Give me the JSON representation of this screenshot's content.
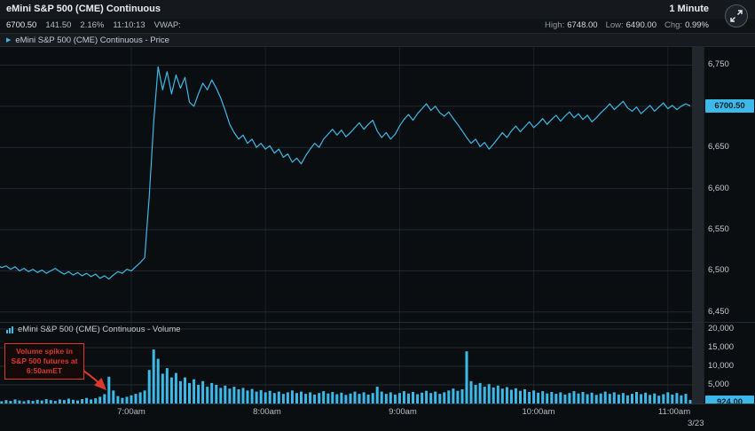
{
  "titlebar": {
    "title": "eMini S&P 500 (CME) Continuous",
    "interval": "1 Minute"
  },
  "statsbar": {
    "last": "6700.50",
    "change": "141.50",
    "change_pct": "2.16%",
    "time": "11:10:13",
    "vwap_label": "VWAP:",
    "high_label": "High:",
    "high": "6748.00",
    "low_label": "Low:",
    "low": "6490.00",
    "chg_label": "Chg:",
    "chg": "0.99%"
  },
  "price_panel": {
    "label": "eMini S&P 500 (CME) Continuous - Price",
    "last_badge": "6700.50",
    "axis_ticks": [
      "6,750",
      "6,700",
      "6,650",
      "6,600",
      "6,550",
      "6,500",
      "6,450"
    ]
  },
  "volume_panel": {
    "label": "eMini S&P 500 (CME) Continuous - Volume",
    "last_badge": "924.00",
    "axis_ticks": [
      "20,000",
      "15,000",
      "10,000",
      "5,000"
    ]
  },
  "time_axis": {
    "ticks": [
      "7:00am",
      "8:00am",
      "9:00am",
      "10:00am",
      "11:00am"
    ],
    "date": "3/23"
  },
  "annotation": {
    "line1": "Volume spike in",
    "line2": "S&P 500 futures at",
    "line3": "6:50amET"
  },
  "colors": {
    "accent": "#3cb9e8",
    "annotation_red": "#d8382e",
    "badge_text": "#08222c"
  },
  "chart_data": [
    {
      "type": "line",
      "title": "eMini S&P 500 (CME) Continuous - Price",
      "x_unit": "minutes after 6:00am ET (1-minute chart, sampled every 2 minutes)",
      "x_start": 0,
      "x_step": 2,
      "values": [
        6507,
        6504,
        6506,
        6502,
        6505,
        6500,
        6503,
        6499,
        6502,
        6498,
        6501,
        6497,
        6500,
        6503,
        6499,
        6496,
        6499,
        6495,
        6498,
        6494,
        6497,
        6493,
        6496,
        6491,
        6494,
        6490,
        6495,
        6499,
        6497,
        6502,
        6500,
        6505,
        6510,
        6516,
        6590,
        6680,
        6748,
        6720,
        6742,
        6715,
        6738,
        6722,
        6735,
        6705,
        6700,
        6715,
        6728,
        6720,
        6732,
        6722,
        6710,
        6695,
        6678,
        6668,
        6660,
        6665,
        6655,
        6660,
        6650,
        6655,
        6648,
        6652,
        6643,
        6648,
        6638,
        6642,
        6632,
        6637,
        6630,
        6640,
        6648,
        6655,
        6650,
        6660,
        6666,
        6672,
        6665,
        6671,
        6663,
        6668,
        6674,
        6680,
        6672,
        6678,
        6683,
        6670,
        6662,
        6668,
        6660,
        6666,
        6676,
        6684,
        6690,
        6683,
        6691,
        6697,
        6703,
        6695,
        6700,
        6692,
        6688,
        6693,
        6685,
        6678,
        6670,
        6662,
        6655,
        6660,
        6651,
        6656,
        6648,
        6654,
        6661,
        6668,
        6662,
        6670,
        6676,
        6669,
        6675,
        6681,
        6674,
        6679,
        6685,
        6678,
        6684,
        6689,
        6682,
        6688,
        6693,
        6686,
        6691,
        6684,
        6689,
        6681,
        6686,
        6692,
        6697,
        6703,
        6696,
        6701,
        6706,
        6698,
        6694,
        6699,
        6691,
        6696,
        6701,
        6694,
        6699,
        6704,
        6697,
        6701,
        6696,
        6700,
        6703,
        6700.5
      ],
      "ylim": [
        6440,
        6772
      ],
      "yticks": [
        6750,
        6700,
        6650,
        6600,
        6550,
        6500,
        6450
      ],
      "xticks": [
        60,
        120,
        180,
        240,
        300
      ],
      "xtick_labels": [
        "7:00am",
        "8:00am",
        "9:00am",
        "10:00am",
        "11:00am"
      ],
      "last": 6700.5,
      "high": 6748.0,
      "low": 6490.0
    },
    {
      "type": "bar",
      "title": "eMini S&P 500 (CME) Continuous - Volume",
      "x_unit": "minutes after 6:00am ET (sampled every 2 minutes)",
      "x_start": 0,
      "x_step": 2,
      "values": [
        800,
        600,
        900,
        700,
        1100,
        800,
        600,
        900,
        700,
        1000,
        800,
        1200,
        900,
        700,
        1100,
        900,
        1300,
        1000,
        800,
        1200,
        1500,
        1100,
        1400,
        1800,
        2500,
        7200,
        3500,
        2000,
        1500,
        1800,
        2200,
        2600,
        3000,
        3500,
        9000,
        14500,
        12000,
        8000,
        9500,
        7000,
        8200,
        6000,
        7000,
        5500,
        6500,
        5000,
        6000,
        4500,
        5500,
        5000,
        4200,
        4800,
        4000,
        4500,
        3800,
        4200,
        3500,
        3900,
        3200,
        3600,
        3000,
        3400,
        2800,
        3200,
        2600,
        3000,
        3500,
        2800,
        3200,
        2600,
        3000,
        2400,
        2800,
        3300,
        2700,
        3100,
        2500,
        2900,
        2300,
        2700,
        3200,
        2600,
        3000,
        2400,
        2800,
        4500,
        3200,
        2600,
        3000,
        2400,
        2800,
        3300,
        2700,
        3100,
        2500,
        2900,
        3400,
        2800,
        3200,
        2600,
        3000,
        3500,
        4000,
        3400,
        3800,
        14000,
        6000,
        5000,
        5500,
        4500,
        5200,
        4300,
        4800,
        4000,
        4400,
        3700,
        4100,
        3400,
        3800,
        3100,
        3500,
        2900,
        3300,
        2700,
        3100,
        2600,
        3000,
        2400,
        2800,
        3300,
        2700,
        3100,
        2500,
        2900,
        2300,
        2700,
        3200,
        2600,
        3000,
        2400,
        2800,
        2200,
        2600,
        3100,
        2500,
        2900,
        2300,
        2700,
        2100,
        2500,
        3000,
        2400,
        2800,
        2200,
        2600,
        924
      ],
      "ylim": [
        0,
        22000
      ],
      "yticks": [
        20000,
        15000,
        10000,
        5000
      ],
      "last": 924.0
    }
  ]
}
